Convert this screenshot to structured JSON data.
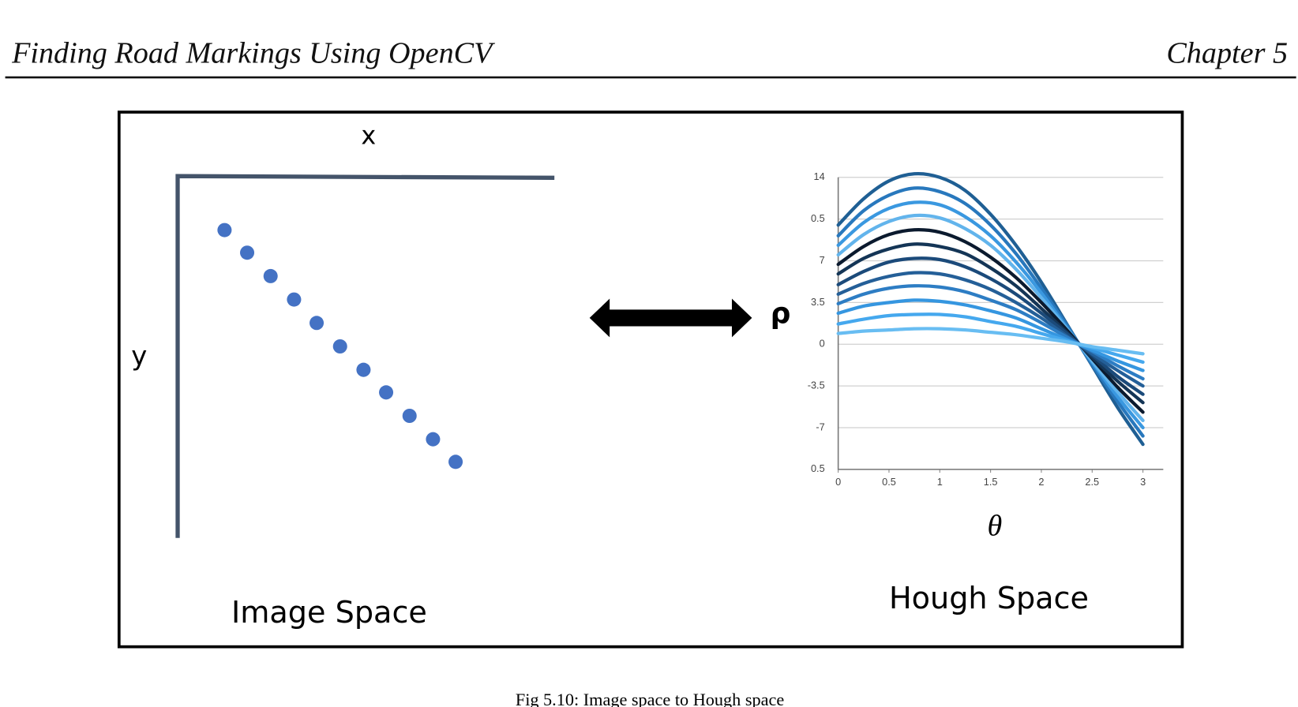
{
  "header": {
    "title": "Finding Road Markings Using OpenCV",
    "chapter": "Chapter 5"
  },
  "image_space": {
    "x_label": "x",
    "y_label": "y",
    "label": "Image Space"
  },
  "chart_data": {
    "type": "line",
    "title": "Hough Space",
    "xlabel": "θ",
    "ylabel": "ρ",
    "x": [
      0,
      0.25,
      0.5,
      0.75,
      1,
      1.25,
      1.5,
      1.75,
      2,
      2.25,
      2.5,
      2.75,
      3
    ],
    "xlim": [
      0,
      3.2
    ],
    "ylim": [
      -10.5,
      14
    ],
    "xticks": [
      0,
      0.5,
      1,
      1.5,
      2,
      2.5,
      3
    ],
    "yticks": [
      14,
      {
        "value": 10.5,
        "label": "0.5"
      },
      7,
      3.5,
      0,
      -3.5,
      -7,
      {
        "value": -10.5,
        "label": "0.5"
      }
    ],
    "grid": true,
    "series": [
      {
        "color": "#1f5f94",
        "values": [
          10.0,
          12.2,
          13.7,
          14.3,
          14.0,
          12.9,
          10.9,
          8.3,
          5.2,
          1.7,
          -1.8,
          -5.3,
          -8.4
        ]
      },
      {
        "color": "#2878bd",
        "values": [
          9.1,
          11.2,
          12.5,
          13.1,
          12.8,
          11.8,
          10.0,
          7.6,
          4.7,
          1.6,
          -1.7,
          -4.8,
          -7.7
        ]
      },
      {
        "color": "#3a98e0",
        "values": [
          8.3,
          10.2,
          11.4,
          11.9,
          11.7,
          10.7,
          9.1,
          6.9,
          4.3,
          1.4,
          -1.5,
          -4.4,
          -7.0
        ]
      },
      {
        "color": "#62b4ec",
        "values": [
          7.5,
          9.2,
          10.3,
          10.8,
          10.6,
          9.7,
          8.3,
          6.3,
          3.9,
          1.3,
          -1.4,
          -4.0,
          -6.4
        ]
      },
      {
        "color": "#0b1a2e",
        "values": [
          6.7,
          8.2,
          9.2,
          9.6,
          9.4,
          8.6,
          7.3,
          5.6,
          3.5,
          1.2,
          -1.2,
          -3.6,
          -5.7
        ]
      },
      {
        "color": "#143556",
        "values": [
          5.9,
          7.2,
          8.0,
          8.4,
          8.2,
          7.6,
          6.4,
          4.9,
          3.0,
          1.0,
          -1.1,
          -3.1,
          -4.9
        ]
      },
      {
        "color": "#1b4a7a",
        "values": [
          5.0,
          6.1,
          6.9,
          7.2,
          7.1,
          6.5,
          5.5,
          4.2,
          2.6,
          0.9,
          -0.9,
          -2.7,
          -4.2
        ]
      },
      {
        "color": "#245f98",
        "values": [
          4.2,
          5.1,
          5.7,
          6.0,
          5.9,
          5.4,
          4.6,
          3.5,
          2.2,
          0.7,
          -0.8,
          -2.2,
          -3.5
        ]
      },
      {
        "color": "#2d7dc4",
        "values": [
          3.4,
          4.2,
          4.7,
          4.9,
          4.8,
          4.4,
          3.7,
          2.9,
          1.8,
          0.6,
          -0.6,
          -1.8,
          -2.9
        ]
      },
      {
        "color": "#3596e0",
        "values": [
          2.6,
          3.2,
          3.5,
          3.7,
          3.6,
          3.3,
          2.8,
          2.2,
          1.3,
          0.4,
          -0.5,
          -1.4,
          -2.2
        ]
      },
      {
        "color": "#45a8ee",
        "values": [
          1.7,
          2.1,
          2.4,
          2.5,
          2.5,
          2.3,
          1.9,
          1.5,
          0.9,
          0.3,
          -0.3,
          -0.9,
          -1.5
        ]
      },
      {
        "color": "#68bdf2",
        "values": [
          0.9,
          1.1,
          1.2,
          1.3,
          1.3,
          1.2,
          1.0,
          0.8,
          0.5,
          0.2,
          -0.2,
          -0.5,
          -0.8
        ]
      }
    ]
  },
  "caption": "Fig 5.10: Image space to Hough space"
}
